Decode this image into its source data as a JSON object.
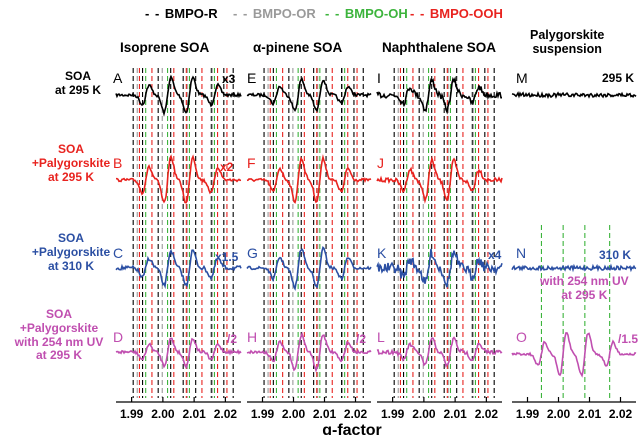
{
  "legend": [
    {
      "label": "BMPO-R",
      "color": "#000000"
    },
    {
      "label": "BMPO-OR",
      "color": "#9a9a9a"
    },
    {
      "label": "BMPO-OH",
      "color": "#3cb43c"
    },
    {
      "label": "BMPO-OOH",
      "color": "#e8231f"
    }
  ],
  "column_titles": [
    "Isoprene SOA",
    "α-pinene SOA",
    "Naphthalene SOA",
    "Palygorskite suspension"
  ],
  "row_labels": [
    {
      "text": "SOA\nat 295 K",
      "color": "#000000"
    },
    {
      "text": "SOA\n+Palygorskite\nat 295 K",
      "color": "#e8231f"
    },
    {
      "text": "SOA\n+Palygorskite\nat 310 K",
      "color": "#2b4fa3"
    },
    {
      "text": "SOA\n+Palygorskite\nwith 254 nm UV\nat 295 K",
      "color": "#c04fb0"
    }
  ],
  "panel_letters": [
    "A",
    "B",
    "C",
    "D",
    "E",
    "F",
    "G",
    "H",
    "I",
    "J",
    "K",
    "L",
    "M",
    "N",
    "O"
  ],
  "multipliers": {
    "A": "x3",
    "B": "x2",
    "C": "x1.5",
    "D": "/2",
    "H": "/2",
    "K": "x4",
    "O": "/1.5"
  },
  "palygorskite_labels": {
    "M": "295 K",
    "N": "310 K",
    "O": "with 254 nm UV\nat 295 K"
  },
  "xlabel": "g-factor",
  "chart_data": {
    "type": "line",
    "title": "",
    "xlabel": "g-factor",
    "ylabel": "",
    "xlim": [
      1.985,
      2.025
    ],
    "xticks": [
      "1.99",
      "2.00",
      "2.01",
      "2.02"
    ],
    "xtick_values": [
      1.99,
      2.0,
      2.01,
      2.02
    ],
    "series_colors": [
      "#000000",
      "#e8231f",
      "#2b4fa3",
      "#c04fb0"
    ],
    "reference_lines": {
      "BMPO-R": [
        1.9905,
        1.9935,
        1.9985,
        2.0025,
        2.0065,
        2.0105,
        2.0155,
        2.0195,
        2.0225
      ],
      "BMPO-OR": [
        1.9918,
        1.9998,
        2.0078,
        2.0158
      ],
      "BMPO-OH": [
        1.9945,
        2.0015,
        2.0085,
        2.0165
      ],
      "BMPO-OOH": [
        1.9925,
        1.9965,
        2.0035,
        2.0075,
        2.0125,
        2.0175,
        2.0205
      ]
    },
    "columns": [
      "Isoprene SOA",
      "α-pinene SOA",
      "Naphthalene SOA",
      "Palygorskite suspension"
    ]
  }
}
